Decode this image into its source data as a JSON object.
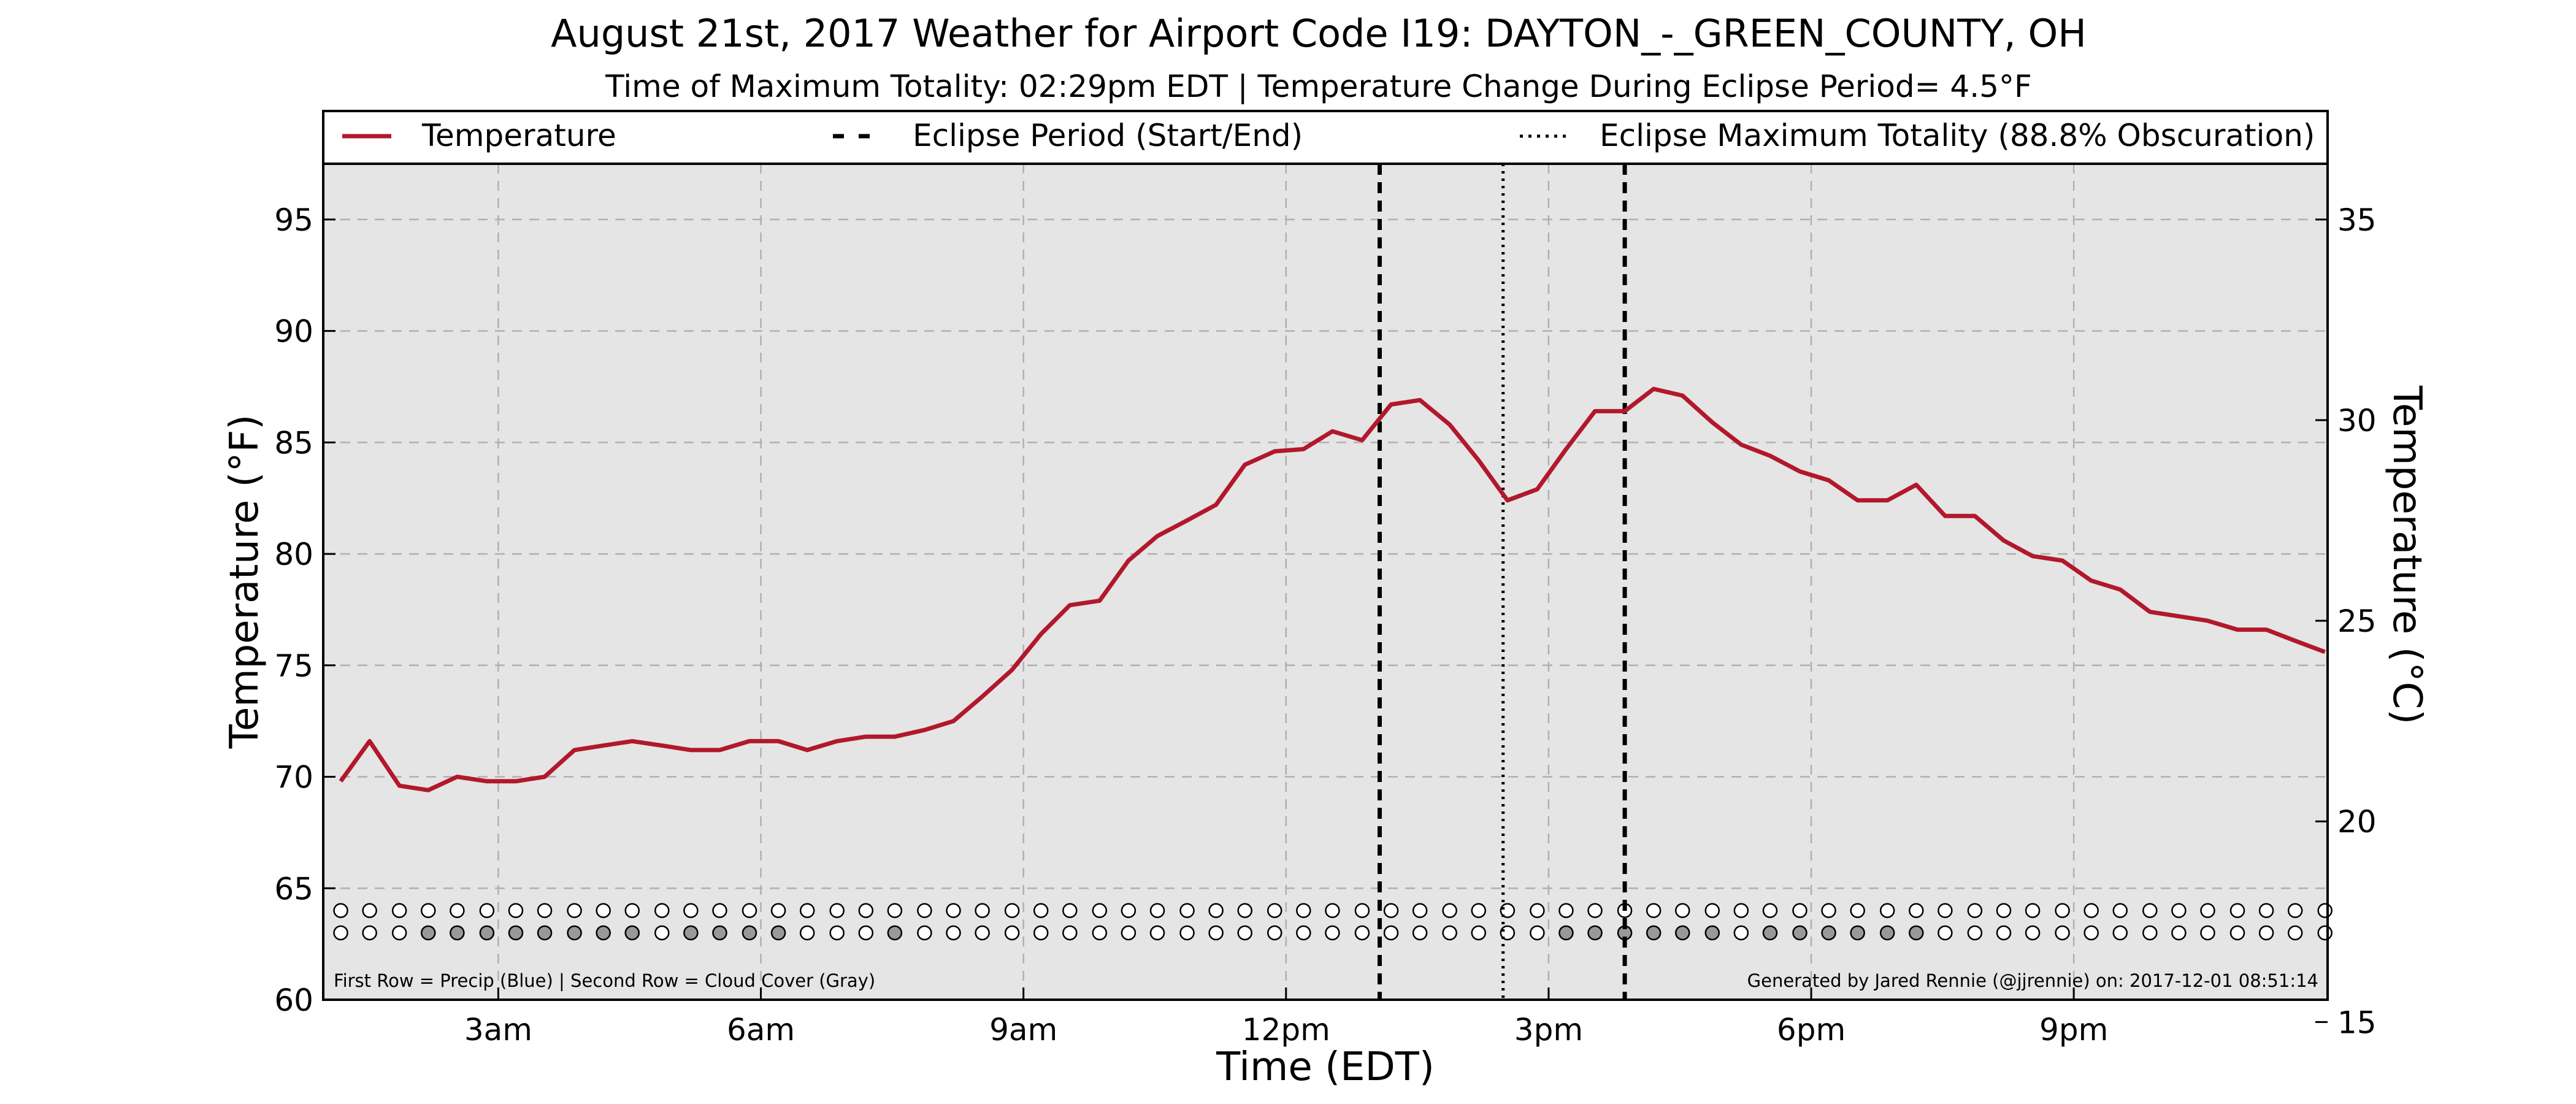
{
  "chart_data": {
    "type": "line",
    "title": "August 21st, 2017 Weather for Airport Code I19: DAYTON_-_GREEN_COUNTY, OH",
    "subtitle": "Time of Maximum Totality: 02:29pm EDT | Temperature Change During Eclipse Period= 4.5°F",
    "xlabel": "Time (EDT)",
    "ylabel_left": "Temperature (°F)",
    "ylabel_right": "Temperature (°C)",
    "x_unit": "hours after midnight (EDT)",
    "xlim": [
      1.0,
      23.9
    ],
    "ylim": [
      60,
      97.5
    ],
    "grid": true,
    "legend_position": "top",
    "x_ticks": [
      {
        "value": 3,
        "label": "3am"
      },
      {
        "value": 6,
        "label": "6am"
      },
      {
        "value": 9,
        "label": "9am"
      },
      {
        "value": 12,
        "label": "12pm"
      },
      {
        "value": 15,
        "label": "3pm"
      },
      {
        "value": 18,
        "label": "6pm"
      },
      {
        "value": 21,
        "label": "9pm"
      }
    ],
    "y_ticks_left": [
      60,
      65,
      70,
      75,
      80,
      85,
      90,
      95
    ],
    "y_ticks_right": [
      15,
      20,
      25,
      30,
      35
    ],
    "series": [
      {
        "name": "Temperature",
        "color": "#b2182b",
        "x": [
          1.2,
          1.53,
          1.87,
          2.2,
          2.53,
          2.87,
          3.2,
          3.53,
          3.87,
          4.2,
          4.53,
          4.87,
          5.2,
          5.53,
          5.87,
          6.2,
          6.53,
          6.87,
          7.2,
          7.53,
          7.87,
          8.2,
          8.53,
          8.87,
          9.2,
          9.53,
          9.87,
          10.2,
          10.53,
          10.87,
          11.2,
          11.53,
          11.87,
          12.2,
          12.53,
          12.87,
          13.2,
          13.53,
          13.87,
          14.2,
          14.53,
          14.87,
          15.2,
          15.53,
          15.87,
          16.2,
          16.53,
          16.87,
          17.2,
          17.53,
          17.87,
          18.2,
          18.53,
          18.87,
          19.2,
          19.53,
          19.87,
          20.2,
          20.53,
          20.87,
          21.2,
          21.53,
          21.87,
          22.2,
          22.53,
          22.87,
          23.2,
          23.53,
          23.87
        ],
        "values": [
          69.8,
          71.6,
          69.6,
          69.4,
          70.0,
          69.8,
          69.8,
          70.0,
          71.2,
          71.4,
          71.6,
          71.4,
          71.2,
          71.2,
          71.6,
          71.6,
          71.2,
          71.6,
          71.8,
          71.8,
          72.1,
          72.5,
          73.6,
          74.8,
          76.4,
          77.7,
          77.9,
          79.7,
          80.8,
          81.5,
          82.2,
          84.0,
          84.6,
          84.7,
          85.5,
          85.1,
          86.7,
          86.9,
          85.8,
          84.2,
          82.4,
          82.9,
          84.7,
          86.4,
          86.4,
          87.4,
          87.1,
          85.9,
          84.9,
          84.4,
          83.7,
          83.3,
          82.4,
          82.4,
          83.1,
          81.7,
          81.7,
          80.6,
          79.9,
          79.7,
          78.8,
          78.4,
          77.4,
          77.2,
          77.0,
          76.6,
          76.6,
          76.1,
          75.6
        ]
      }
    ],
    "eclipse_start": 13.07,
    "eclipse_end": 15.87,
    "eclipse_max": 14.48,
    "precip_row": {
      "label": "Precip (Blue)",
      "y_value": 64.0,
      "fills": [
        0,
        0,
        0,
        0,
        0,
        0,
        0,
        0,
        0,
        0,
        0,
        0,
        0,
        0,
        0,
        0,
        0,
        0,
        0,
        0,
        0,
        0,
        0,
        0,
        0,
        0,
        0,
        0,
        0,
        0,
        0,
        0,
        0,
        0,
        0,
        0,
        0,
        0,
        0,
        0,
        0,
        0,
        0,
        0,
        0,
        0,
        0,
        0,
        0,
        0,
        0,
        0,
        0,
        0,
        0,
        0,
        0,
        0,
        0,
        0,
        0,
        0,
        0,
        0,
        0,
        0,
        0,
        0,
        0
      ]
    },
    "cloud_row": {
      "label": "Cloud Cover (Gray)",
      "y_value": 63.0,
      "fills": [
        0,
        0,
        0,
        1,
        1,
        1,
        1,
        1,
        1,
        1,
        1,
        0,
        1,
        1,
        1,
        1,
        0,
        0,
        0,
        1,
        0,
        0,
        0,
        0,
        0,
        0,
        0,
        0,
        0,
        0,
        0,
        0,
        0,
        0,
        0,
        0,
        0,
        0,
        0,
        0,
        0,
        0,
        1,
        1,
        1,
        1,
        1,
        1,
        0,
        1,
        1,
        1,
        1,
        1,
        1,
        0,
        0,
        0,
        0,
        0,
        0,
        0,
        0,
        0,
        0,
        0,
        0,
        0,
        0
      ]
    },
    "legend": [
      {
        "label": "Temperature",
        "style": "solid",
        "color": "#b2182b"
      },
      {
        "label": "Eclipse Period (Start/End)",
        "style": "dashed",
        "color": "#000000"
      },
      {
        "label": "Eclipse Maximum Totality (88.8% Obscuration)",
        "style": "dotted",
        "color": "#000000"
      }
    ],
    "footnote_left": "First Row = Precip (Blue) | Second Row = Cloud Cover (Gray)",
    "footnote_right": "Generated by Jared Rennie (@jjrennie) on: 2017-12-01 08:51:14",
    "colors": {
      "plot_background": "#e5e5e5",
      "grid": "#b0b0b0",
      "cloud_fill": "#999999",
      "precip_fill": "#3366cc",
      "empty_fill": "#ffffff"
    }
  }
}
